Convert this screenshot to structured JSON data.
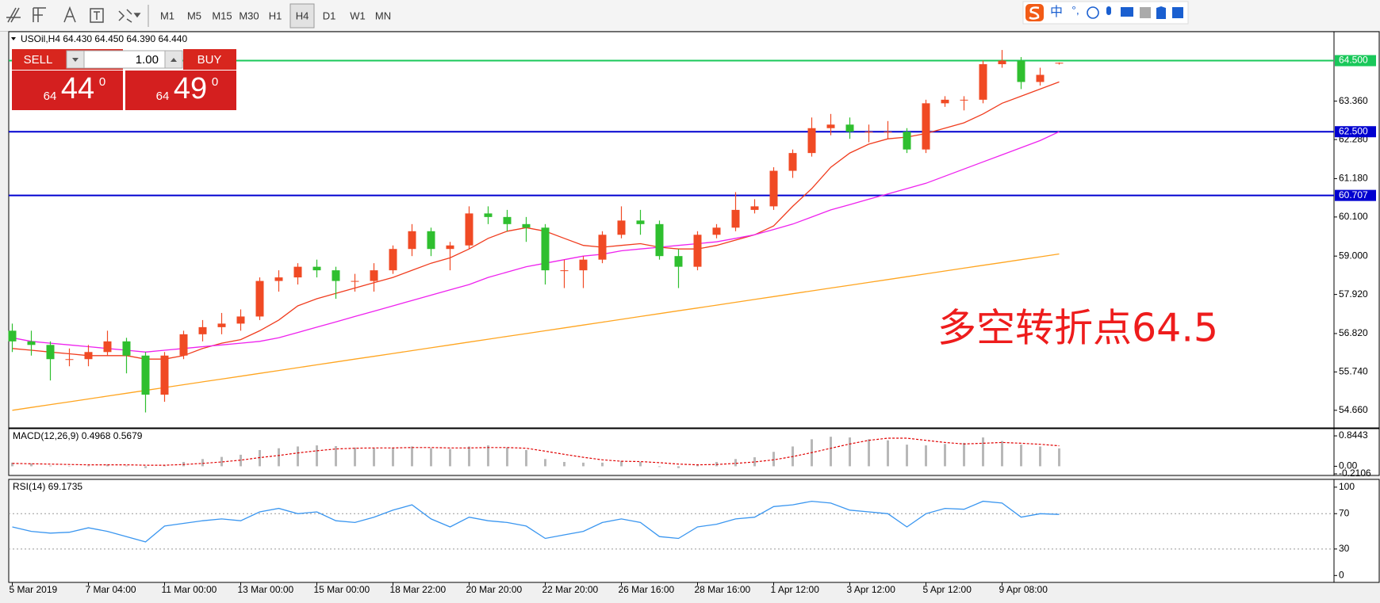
{
  "toolbar": {
    "timeframes": [
      "M1",
      "M5",
      "M15",
      "M30",
      "H1",
      "H4",
      "D1",
      "W1",
      "MN"
    ],
    "active": "H4"
  },
  "ime_bar": {
    "mode": "中",
    "punctuation": "°,"
  },
  "order_panel": {
    "sell": "SELL",
    "buy": "BUY",
    "lot": "1.00",
    "sell_price": {
      "big": "64",
      "main": "44",
      "sup": "0"
    },
    "buy_price": {
      "big": "64",
      "main": "49",
      "sup": "0"
    }
  },
  "chart_data": [
    {
      "type": "candlestick",
      "title": "USOil,H4 64.430 64.450 64.390 64.440",
      "annotation": "多空转折点64.5",
      "annotation_color": "#ee1c1c",
      "categories": [
        "5 Mar 2019",
        null,
        null,
        null,
        "7 Mar 04:00",
        null,
        null,
        null,
        "11 Mar 00:00",
        null,
        null,
        null,
        "13 Mar 00:00",
        null,
        null,
        null,
        "15 Mar 00:00",
        null,
        null,
        null,
        "18 Mar 22:00",
        null,
        null,
        null,
        "20 Mar 20:00",
        null,
        null,
        null,
        "22 Mar 20:00",
        null,
        null,
        null,
        "26 Mar 16:00",
        null,
        null,
        null,
        "28 Mar 16:00",
        null,
        null,
        null,
        "1 Apr 12:00",
        null,
        null,
        null,
        "3 Apr 12:00",
        null,
        null,
        null,
        "5 Apr 12:00",
        null,
        null,
        null,
        "9 Apr 08:00",
        null,
        null,
        null
      ],
      "open": [
        56.9,
        56.6,
        56.5,
        56.1,
        56.1,
        56.3,
        56.6,
        56.2,
        55.1,
        56.2,
        56.8,
        57.0,
        57.1,
        57.3,
        58.3,
        58.4,
        58.7,
        58.6,
        58.3,
        58.3,
        58.6,
        59.2,
        59.7,
        59.2,
        59.3,
        60.2,
        60.1,
        59.9,
        59.8,
        58.6,
        58.6,
        58.9,
        59.6,
        60.0,
        59.9,
        59.0,
        58.7,
        59.6,
        59.8,
        60.3,
        60.4,
        61.4,
        61.9,
        62.6,
        62.7,
        62.5,
        62.5,
        62.5,
        62.0,
        63.3,
        63.4,
        63.4,
        64.4,
        64.5,
        63.9,
        64.43
      ],
      "high": [
        57.1,
        56.9,
        56.6,
        56.4,
        56.5,
        56.9,
        56.7,
        56.3,
        56.3,
        56.9,
        57.2,
        57.4,
        57.5,
        58.4,
        58.6,
        58.8,
        58.9,
        58.7,
        58.5,
        58.8,
        59.3,
        59.9,
        59.8,
        59.4,
        60.4,
        60.4,
        60.3,
        60.1,
        59.9,
        58.9,
        59.0,
        59.7,
        60.4,
        60.3,
        60.0,
        59.2,
        59.7,
        59.9,
        60.8,
        60.6,
        61.5,
        62.0,
        62.9,
        63.0,
        62.9,
        62.7,
        62.8,
        62.6,
        63.4,
        63.5,
        63.5,
        64.5,
        64.8,
        64.6,
        64.3,
        64.45
      ],
      "low": [
        56.3,
        56.2,
        55.5,
        55.9,
        55.9,
        56.2,
        55.7,
        54.6,
        54.9,
        56.1,
        56.6,
        56.8,
        56.9,
        57.2,
        58.0,
        58.2,
        58.4,
        57.8,
        58.0,
        58.0,
        58.5,
        59.0,
        59.0,
        58.6,
        59.2,
        59.9,
        59.7,
        59.4,
        58.2,
        58.1,
        58.1,
        58.8,
        59.5,
        59.6,
        58.9,
        58.1,
        58.6,
        59.5,
        59.7,
        60.2,
        60.3,
        61.2,
        61.8,
        62.4,
        62.3,
        62.2,
        62.3,
        61.9,
        61.9,
        63.2,
        63.1,
        63.3,
        64.3,
        63.7,
        63.8,
        64.39
      ],
      "close": [
        56.6,
        56.5,
        56.1,
        56.1,
        56.3,
        56.6,
        56.2,
        55.1,
        56.2,
        56.8,
        57.0,
        57.1,
        57.3,
        58.3,
        58.4,
        58.7,
        58.6,
        58.3,
        58.3,
        58.6,
        59.2,
        59.7,
        59.2,
        59.3,
        60.2,
        60.1,
        59.9,
        59.8,
        58.6,
        58.6,
        58.9,
        59.6,
        60.0,
        59.9,
        59.0,
        58.7,
        59.6,
        59.8,
        60.3,
        60.4,
        61.4,
        61.9,
        62.6,
        62.7,
        62.5,
        62.5,
        62.5,
        62.0,
        63.3,
        63.4,
        63.4,
        64.4,
        64.5,
        63.9,
        64.1,
        64.44
      ],
      "up_color": "#f04a24",
      "down_color": "#2fbf2f",
      "lines": [
        {
          "color": "#f03c1e",
          "values": [
            56.4,
            56.35,
            56.3,
            56.25,
            56.2,
            56.2,
            56.2,
            56.1,
            56.1,
            56.2,
            56.4,
            56.55,
            56.65,
            56.9,
            57.2,
            57.6,
            57.8,
            57.95,
            58.1,
            58.25,
            58.4,
            58.6,
            58.8,
            58.95,
            59.2,
            59.5,
            59.7,
            59.8,
            59.7,
            59.5,
            59.3,
            59.25,
            59.3,
            59.35,
            59.25,
            59.2,
            59.2,
            59.3,
            59.45,
            59.6,
            59.85,
            60.4,
            60.9,
            61.5,
            61.9,
            62.15,
            62.3,
            62.35,
            62.45,
            62.6,
            62.75,
            63.0,
            63.3,
            63.5,
            63.7,
            63.9
          ]
        },
        {
          "color": "#ee22ee",
          "values": [
            56.7,
            56.6,
            56.55,
            56.5,
            56.45,
            56.4,
            56.35,
            56.3,
            56.35,
            56.4,
            56.45,
            56.5,
            56.55,
            56.6,
            56.7,
            56.85,
            57.0,
            57.15,
            57.3,
            57.45,
            57.6,
            57.75,
            57.9,
            58.05,
            58.2,
            58.4,
            58.55,
            58.7,
            58.8,
            58.9,
            59.0,
            59.05,
            59.15,
            59.2,
            59.25,
            59.3,
            59.35,
            59.4,
            59.5,
            59.6,
            59.75,
            59.9,
            60.1,
            60.3,
            60.45,
            60.6,
            60.75,
            60.9,
            61.05,
            61.25,
            61.45,
            61.65,
            61.85,
            62.05,
            62.25,
            62.5
          ]
        },
        {
          "color": "#ffa520",
          "values": [
            54.66,
            54.74,
            54.82,
            54.9,
            54.98,
            55.06,
            55.14,
            55.22,
            55.3,
            55.38,
            55.46,
            55.54,
            55.62,
            55.7,
            55.78,
            55.86,
            55.94,
            56.02,
            56.1,
            56.18,
            56.26,
            56.34,
            56.42,
            56.5,
            56.58,
            56.66,
            56.74,
            56.82,
            56.9,
            56.98,
            57.06,
            57.14,
            57.22,
            57.3,
            57.38,
            57.46,
            57.54,
            57.62,
            57.7,
            57.78,
            57.86,
            57.94,
            58.02,
            58.1,
            58.18,
            58.26,
            58.34,
            58.42,
            58.5,
            58.58,
            58.66,
            58.74,
            58.82,
            58.9,
            58.98,
            59.06
          ]
        }
      ],
      "hlines": [
        {
          "value": 64.5,
          "label": "64.500",
          "color": "#19c85a"
        },
        {
          "value": 62.5,
          "label": "62.500",
          "color": "#0000d0"
        },
        {
          "value": 60.707,
          "label": "60.707",
          "color": "#0000d0"
        }
      ],
      "ylim": [
        54.21,
        65.27
      ],
      "yticks": [
        {
          "value": 54.66,
          "label": "54.660"
        },
        {
          "value": 55.74,
          "label": "55.740"
        },
        {
          "value": 56.82,
          "label": "56.820"
        },
        {
          "value": 57.92,
          "label": "57.920"
        },
        {
          "value": 59.0,
          "label": "59.000"
        },
        {
          "value": 60.1,
          "label": "60.100"
        },
        {
          "value": 61.18,
          "label": "61.180"
        },
        {
          "value": 62.28,
          "label": "62.280"
        },
        {
          "value": 63.36,
          "label": "63.360"
        }
      ]
    },
    {
      "type": "macd",
      "title": "MACD(12,26,9) 0.4968 0.5679",
      "bar_color": "#b8b8b8",
      "signal_color": "#e00000",
      "values": [
        0.1,
        0.08,
        0.02,
        0.0,
        0.02,
        0.05,
        0.02,
        -0.05,
        0.02,
        0.12,
        0.2,
        0.26,
        0.32,
        0.45,
        0.5,
        0.55,
        0.58,
        0.56,
        0.52,
        0.5,
        0.52,
        0.55,
        0.5,
        0.48,
        0.55,
        0.58,
        0.52,
        0.45,
        0.2,
        0.12,
        0.1,
        0.1,
        0.15,
        0.12,
        -0.02,
        -0.05,
        0.05,
        0.12,
        0.2,
        0.25,
        0.4,
        0.55,
        0.75,
        0.82,
        0.8,
        0.75,
        0.72,
        0.6,
        0.58,
        0.62,
        0.65,
        0.8,
        0.7,
        0.6,
        0.55,
        0.4968
      ],
      "signal": [
        0.08,
        0.07,
        0.06,
        0.05,
        0.04,
        0.04,
        0.04,
        0.03,
        0.03,
        0.05,
        0.08,
        0.12,
        0.17,
        0.24,
        0.3,
        0.37,
        0.43,
        0.48,
        0.5,
        0.51,
        0.51,
        0.52,
        0.52,
        0.51,
        0.51,
        0.52,
        0.52,
        0.5,
        0.42,
        0.33,
        0.25,
        0.18,
        0.14,
        0.13,
        0.1,
        0.06,
        0.04,
        0.05,
        0.08,
        0.12,
        0.18,
        0.27,
        0.38,
        0.5,
        0.62,
        0.72,
        0.78,
        0.78,
        0.72,
        0.66,
        0.62,
        0.64,
        0.66,
        0.64,
        0.61,
        0.5679
      ],
      "ylim": [
        -0.2106,
        1.0
      ],
      "yticks": [
        0.8443,
        {
          "value": 0,
          "label": "0.00"
        },
        -0.2106
      ]
    },
    {
      "type": "line",
      "title": "RSI(14) 69.1735",
      "color": "#3a96f0",
      "values": [
        55,
        50,
        48,
        49,
        54,
        50,
        44,
        38,
        56,
        59,
        62,
        64,
        62,
        72,
        76,
        70,
        72,
        62,
        60,
        66,
        74,
        80,
        64,
        55,
        66,
        62,
        60,
        56,
        42,
        46,
        50,
        60,
        64,
        60,
        44,
        42,
        55,
        58,
        64,
        66,
        78,
        80,
        84,
        82,
        74,
        72,
        70,
        55,
        70,
        76,
        75,
        84,
        82,
        66,
        70,
        69.1735
      ],
      "levels": [
        70,
        30
      ],
      "ylim": [
        -6,
        107
      ],
      "yticks": [
        100,
        70,
        30,
        0
      ]
    }
  ]
}
